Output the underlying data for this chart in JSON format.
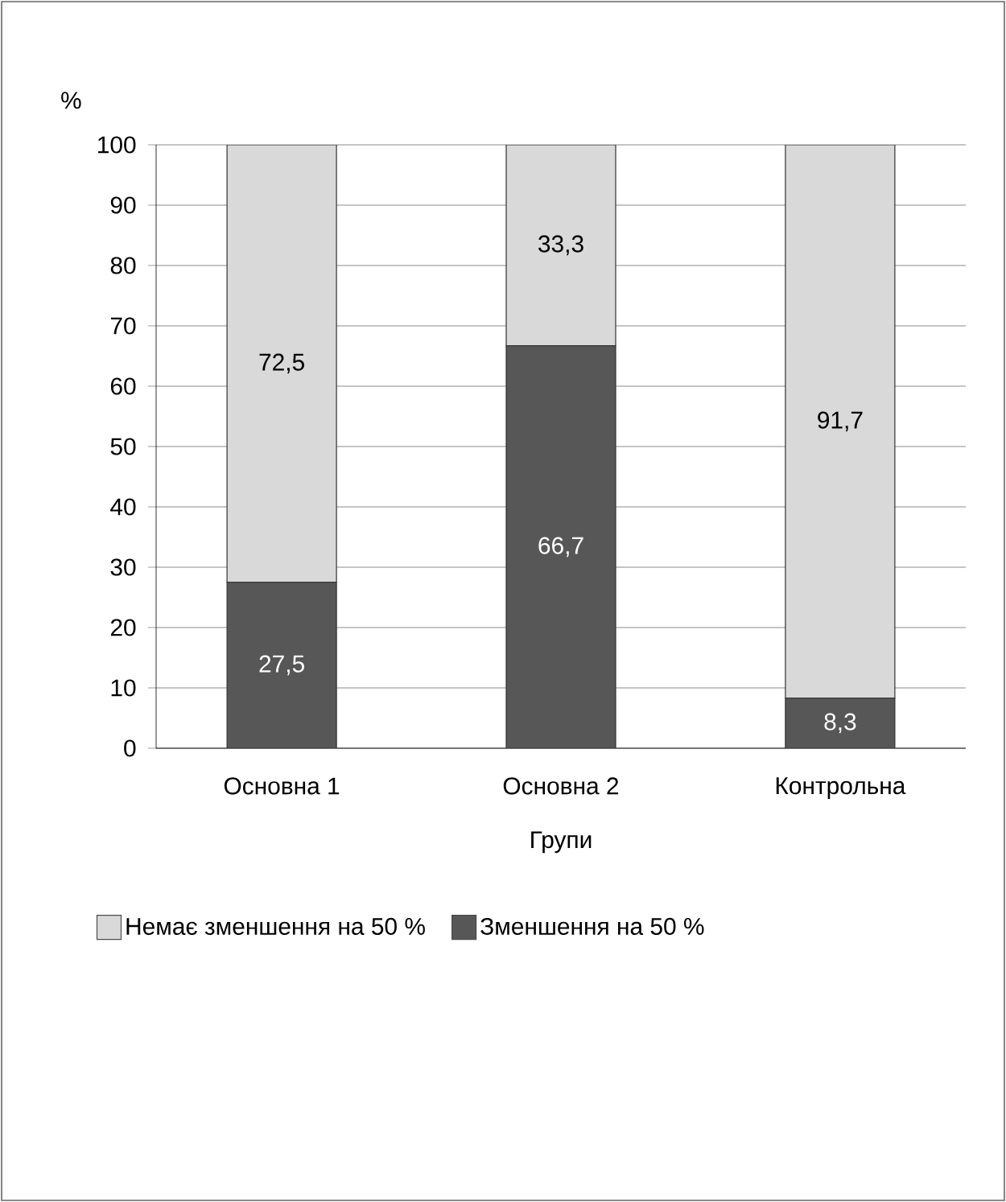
{
  "chart_data": {
    "type": "bar",
    "stacked": true,
    "ylabel": "%",
    "xlabel": "Групи",
    "categories": [
      "Основна 1",
      "Основна 2",
      "Контрольна"
    ],
    "series": [
      {
        "name": "Зменшення на 50 %",
        "color": "#575757",
        "values": [
          27.5,
          66.7,
          8.3
        ],
        "value_labels": [
          "27,5",
          "66,7",
          "8,3"
        ]
      },
      {
        "name": "Немає зменшення на 50 %",
        "color": "#d9d9d9",
        "values": [
          72.5,
          33.3,
          91.7
        ],
        "value_labels": [
          "72,5",
          "33,3",
          "91,7"
        ]
      }
    ],
    "ylim": [
      0,
      100
    ],
    "yticks": [
      0,
      10,
      20,
      30,
      40,
      50,
      60,
      70,
      80,
      90,
      100
    ],
    "grid": "y",
    "legend": "bottom"
  }
}
